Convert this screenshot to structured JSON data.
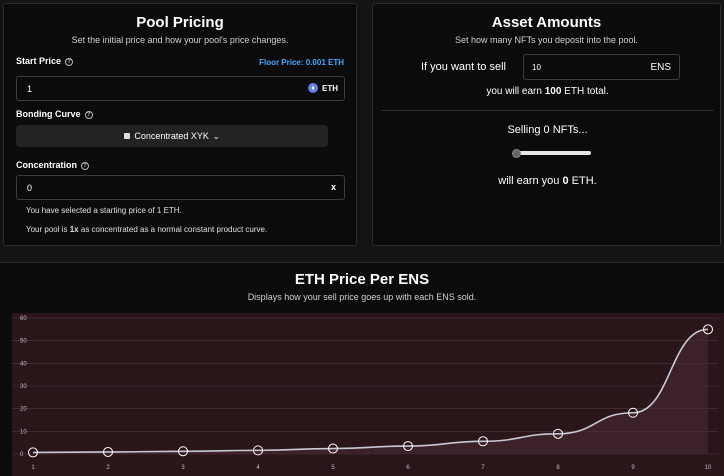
{
  "pricing": {
    "title": "Pool Pricing",
    "subtitle": "Set the initial price and how your pool's price changes.",
    "start_price_label": "Start Price",
    "floor_price": "Floor Price: 0.001 ETH",
    "start_price_value": "1",
    "currency": "ETH",
    "bonding_curve_label": "Bonding Curve",
    "bonding_curve_value": "Concentrated XYK",
    "concentration_label": "Concentration",
    "concentration_value": "0",
    "clear_symbol": "x",
    "note_start": "You have selected a starting price of 1 ETH.",
    "note_conc_prefix": "Your pool is ",
    "note_conc_bold": "1x",
    "note_conc_suffix": " as concentrated as a normal constant product curve."
  },
  "amounts": {
    "title": "Asset Amounts",
    "subtitle": "Set how many NFTs you deposit into the pool.",
    "sell_prefix": "If you want to sell",
    "sell_value": "10",
    "sell_unit": "ENS",
    "earn_prefix": "you will earn ",
    "earn_bold": "100",
    "earn_suffix": " ETH total.",
    "selling_text": "Selling 0 NFTs...",
    "slider_value": 0,
    "will_earn_prefix": "will earn you ",
    "will_earn_bold": "0",
    "will_earn_suffix": " ETH."
  },
  "chart": {
    "title": "ETH Price Per ENS",
    "subtitle": "Displays how your sell price goes up with each ENS sold."
  },
  "colors": {
    "accent_eth": "#627eea",
    "floor_price": "#3ea8ff",
    "chart_fill": "#2a1519",
    "chart_line": "#c9c9d6"
  },
  "chart_data": {
    "type": "line",
    "x": [
      1,
      2,
      3,
      4,
      5,
      6,
      7,
      8,
      9,
      10
    ],
    "series": [
      {
        "values": [
          0.7,
          0.9,
          1.2,
          1.6,
          2.4,
          3.5,
          5.6,
          8.9,
          18.2,
          55
        ]
      }
    ],
    "xlim": [
      1,
      10
    ],
    "ylim": [
      0,
      60
    ],
    "yticks": [
      0,
      10,
      20,
      30,
      40,
      50,
      60
    ],
    "grid": true
  }
}
